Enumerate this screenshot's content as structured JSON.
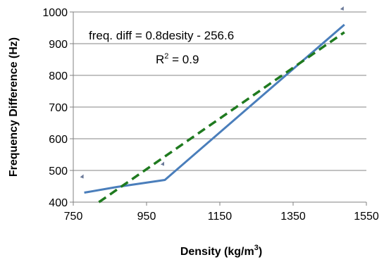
{
  "chart_data": {
    "type": "line",
    "title": "",
    "xlabel": "Density (kg/m",
    "xlabel_sup": "3",
    "xlabel_close": ")",
    "ylabel": "Frequency Difference (Hz)",
    "xlim": [
      750,
      1550
    ],
    "ylim": [
      400,
      1000
    ],
    "x_ticks": [
      750,
      950,
      1150,
      1350,
      1550
    ],
    "y_ticks": [
      400,
      500,
      600,
      700,
      800,
      900,
      1000
    ],
    "grid": "horizontal",
    "series": [
      {
        "color": "#4a7ebb",
        "style": "solid",
        "x": [
          780,
          870,
          1000,
          1490
        ],
        "y": [
          430,
          448,
          470,
          960
        ]
      },
      {
        "color": "#1f7a1f",
        "style": "dashed",
        "x": [
          820,
          1490
        ],
        "y": [
          400,
          936
        ]
      }
    ],
    "annotations": {
      "equation": "freq. diff = 0.8desity - 256.6",
      "r2_prefix": "R",
      "r2_sup": "2",
      "r2_suffix": " = 0.9"
    }
  }
}
